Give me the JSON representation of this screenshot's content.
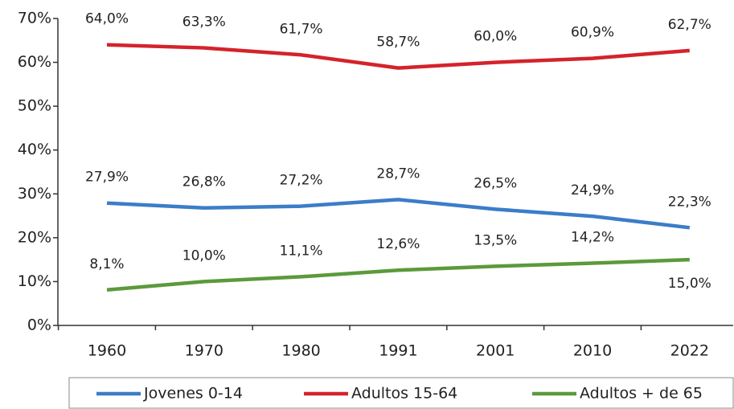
{
  "chart_data": {
    "type": "line",
    "categories": [
      "1960",
      "1970",
      "1980",
      "1991",
      "2001",
      "2010",
      "2022"
    ],
    "series": [
      {
        "name": "Jovenes 0-14",
        "color": "#3b7dc8",
        "values": [
          27.9,
          26.8,
          27.2,
          28.7,
          26.5,
          24.9,
          22.3
        ],
        "value_labels": [
          "27,9%",
          "26,8%",
          "27,2%",
          "28,7%",
          "26,5%",
          "24,9%",
          "22,3%"
        ]
      },
      {
        "name": "Adultos 15-64",
        "color": "#d4232b",
        "values": [
          64.0,
          63.3,
          61.7,
          58.7,
          60.0,
          60.9,
          62.7
        ],
        "value_labels": [
          "64,0%",
          "63,3%",
          "61,7%",
          "58,7%",
          "60,0%",
          "60,9%",
          "62,7%"
        ]
      },
      {
        "name": "Adultos + de 65",
        "color": "#5b9a3b",
        "values": [
          8.1,
          10.0,
          11.1,
          12.6,
          13.5,
          14.2,
          15.0
        ],
        "value_labels": [
          "8,1%",
          "10,0%",
          "11,1%",
          "12,6%",
          "13,5%",
          "14,2%",
          "15,0%"
        ]
      }
    ],
    "ylim": [
      0,
      70
    ],
    "yticks": [
      {
        "value": 0,
        "label": "0%"
      },
      {
        "value": 10,
        "label": "10%"
      },
      {
        "value": 20,
        "label": "20%"
      },
      {
        "value": 30,
        "label": "30%"
      },
      {
        "value": 40,
        "label": "40%"
      },
      {
        "value": 50,
        "label": "50%"
      },
      {
        "value": 60,
        "label": "60%"
      },
      {
        "value": 70,
        "label": "70%"
      }
    ],
    "grid": false,
    "legend": "bottom"
  }
}
